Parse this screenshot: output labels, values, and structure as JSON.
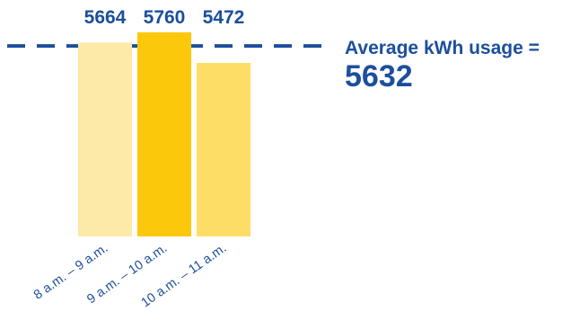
{
  "chart_data": {
    "type": "bar",
    "categories": [
      "8 a.m. – 9 a.m.",
      "9 a.m. – 10 a.m.",
      "10 a.m. – 11 a.m."
    ],
    "values": [
      5664,
      5760,
      5472
    ],
    "bar_colors": [
      "#fde9a8",
      "#fcc80b",
      "#fddd66"
    ],
    "average": {
      "label": "Average kWh usage =",
      "value": 5632,
      "value_text": "5632",
      "line_style": "dashed",
      "color": "#1c4f9c"
    },
    "label_color": "#1c4f9c",
    "tick_color": "#1c4f9c",
    "title": "",
    "xlabel": "",
    "ylabel": "",
    "grid": false
  }
}
